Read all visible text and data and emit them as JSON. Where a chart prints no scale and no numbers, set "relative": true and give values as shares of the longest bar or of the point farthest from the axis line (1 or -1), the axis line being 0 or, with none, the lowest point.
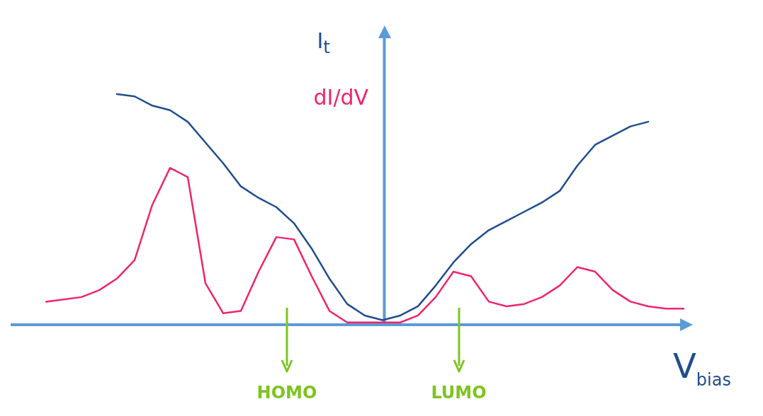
{
  "chart_data": {
    "type": "line",
    "relative": true,
    "xlabel": "V$_{bias}$",
    "legend": "top",
    "marker": "none",
    "line_style": "solid",
    "categories": [
      null,
      null,
      null,
      null,
      null,
      null,
      null,
      null,
      null,
      null,
      null,
      null,
      null,
      null,
      null,
      null,
      null,
      null,
      null,
      null,
      null,
      null,
      null,
      null,
      null,
      null,
      null,
      null,
      null,
      null,
      null,
      null,
      null,
      null,
      null,
      null,
      null
    ],
    "series": [
      {
        "name": "I$_{t}$",
        "color": "#1f4e8c",
        "values": [
          null,
          null,
          null,
          null,
          1.0,
          0.99,
          0.95,
          0.93,
          0.88,
          0.79,
          0.7,
          0.6,
          0.55,
          0.51,
          0.44,
          0.33,
          0.2,
          0.09,
          0.04,
          0.02,
          0.04,
          0.08,
          0.17,
          0.27,
          0.35,
          0.41,
          0.45,
          0.49,
          0.53,
          0.58,
          0.69,
          0.78,
          0.82,
          0.86,
          0.88,
          null,
          null
        ]
      },
      {
        "name": "dI/dV",
        "color": "#f0246e",
        "values": [
          0.1,
          0.11,
          0.12,
          0.15,
          0.2,
          0.28,
          0.52,
          0.68,
          0.64,
          0.18,
          0.05,
          0.06,
          0.23,
          0.38,
          0.37,
          0.21,
          0.06,
          0.01,
          0.01,
          0.01,
          0.01,
          0.04,
          0.12,
          0.23,
          0.21,
          0.1,
          0.08,
          0.09,
          0.12,
          0.17,
          0.25,
          0.23,
          0.15,
          0.1,
          0.08,
          0.07,
          0.07
        ]
      }
    ],
    "annotations": [
      "HOMO",
      "LUMO"
    ]
  }
}
